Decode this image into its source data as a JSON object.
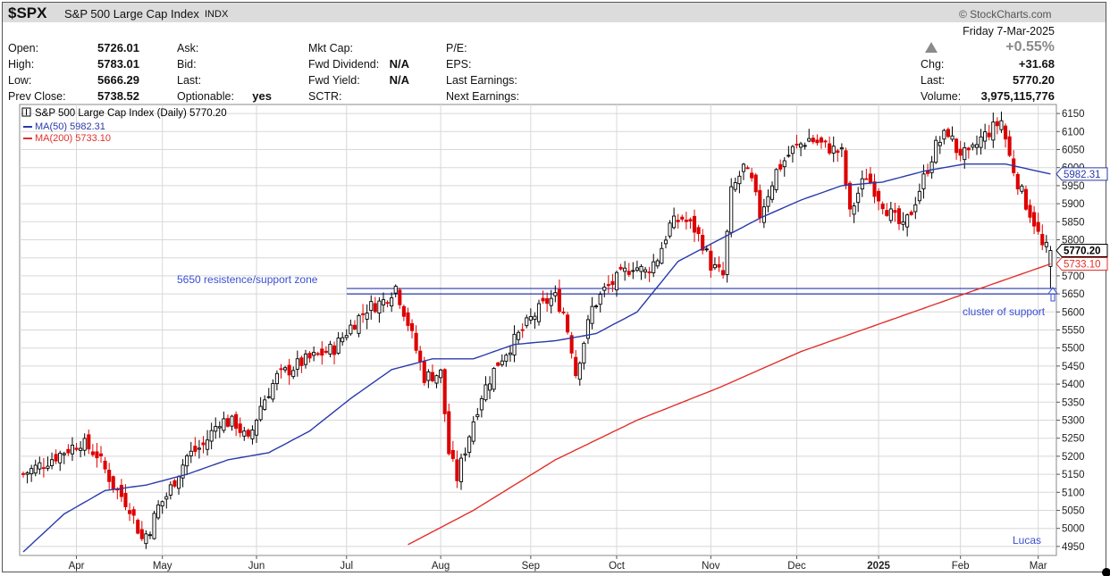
{
  "header": {
    "ticker": "$SPX",
    "index_name": "S&P 500 Large Cap Index",
    "exchange": "INDX",
    "watermark": "© StockCharts.com",
    "date": "Friday 7-Mar-2025",
    "pct_change": "+0.55%",
    "up_arrow_icon": "triangle-up-icon"
  },
  "quote": {
    "open_label": "Open:",
    "open": "5726.01",
    "high_label": "High:",
    "high": "5783.01",
    "low_label": "Low:",
    "low": "5666.29",
    "prev_close_label": "Prev Close:",
    "prev_close": "5738.52",
    "ask_label": "Ask:",
    "bid_label": "Bid:",
    "last_label_mid": "Last:",
    "optionable_label": "Optionable:",
    "optionable": "yes",
    "mkt_cap_label": "Mkt Cap:",
    "fwd_dividend_label": "Fwd Dividend:",
    "fwd_dividend": "N/A",
    "fwd_yield_label": "Fwd Yield:",
    "fwd_yield": "N/A",
    "sctr_label": "SCTR:",
    "pe_label": "P/E:",
    "eps_label": "EPS:",
    "last_earnings_label": "Last Earnings:",
    "next_earnings_label": "Next Earnings:",
    "chg_label": "Chg:",
    "chg": "+31.68",
    "last_label": "Last:",
    "last": "5770.20",
    "volume_label": "Volume:",
    "volume": "3,975,115,776"
  },
  "legend": {
    "price": "S&P 500 Large Cap Index (Daily) 5770.20",
    "ma50": "MA(50) 5982.31",
    "ma200": "MA(200) 5733.10"
  },
  "right_tags": {
    "ma50": "5982.31",
    "last": "5770.20",
    "ma200": "5733.10"
  },
  "annotations": {
    "zone": "5650 resistence/support zone",
    "cluster": "cluster of support",
    "author": "Lucas"
  },
  "colors": {
    "up": "#000000",
    "down": "#dd0000",
    "ma50": "#2a3aaa",
    "ma200": "#e0302a",
    "annotation": "#3a4fd0",
    "grid": "#d8d8d8"
  },
  "chart_data": {
    "type": "candlestick",
    "title": "S&P 500 Large Cap Index (Daily) 5770.20",
    "ylim": [
      4925,
      6175
    ],
    "y_ticks": [
      4950,
      5000,
      5050,
      5100,
      5150,
      5200,
      5250,
      5300,
      5350,
      5400,
      5450,
      5500,
      5550,
      5600,
      5650,
      5700,
      5750,
      5800,
      5850,
      5900,
      5950,
      6000,
      6050,
      6100,
      6150
    ],
    "x_ticks": [
      "Apr",
      "May",
      "Jun",
      "Jul",
      "Aug",
      "Sep",
      "Oct",
      "Nov",
      "Dec",
      "2025",
      "Feb",
      "Mar"
    ],
    "x_tick_days": [
      13,
      34,
      57,
      79,
      102,
      124,
      145,
      168,
      189,
      209,
      229,
      248
    ],
    "n_days": 252,
    "close_keypoints": [
      [
        0,
        5150
      ],
      [
        8,
        5200
      ],
      [
        14,
        5240
      ],
      [
        18,
        5205
      ],
      [
        22,
        5120
      ],
      [
        26,
        5060
      ],
      [
        29,
        4970
      ],
      [
        31,
        5000
      ],
      [
        33,
        5060
      ],
      [
        35,
        5090
      ],
      [
        40,
        5200
      ],
      [
        44,
        5230
      ],
      [
        48,
        5300
      ],
      [
        52,
        5290
      ],
      [
        55,
        5240
      ],
      [
        58,
        5340
      ],
      [
        62,
        5420
      ],
      [
        68,
        5460
      ],
      [
        72,
        5480
      ],
      [
        76,
        5500
      ],
      [
        80,
        5560
      ],
      [
        84,
        5610
      ],
      [
        88,
        5630
      ],
      [
        91,
        5670
      ],
      [
        94,
        5570
      ],
      [
        98,
        5420
      ],
      [
        102,
        5430
      ],
      [
        104,
        5210
      ],
      [
        106,
        5140
      ],
      [
        108,
        5220
      ],
      [
        110,
        5300
      ],
      [
        112,
        5370
      ],
      [
        116,
        5460
      ],
      [
        120,
        5520
      ],
      [
        124,
        5580
      ],
      [
        128,
        5630
      ],
      [
        130,
        5640
      ],
      [
        132,
        5600
      ],
      [
        134,
        5500
      ],
      [
        135,
        5430
      ],
      [
        137,
        5520
      ],
      [
        139,
        5610
      ],
      [
        142,
        5660
      ],
      [
        146,
        5700
      ],
      [
        149,
        5730
      ],
      [
        152,
        5710
      ],
      [
        155,
        5750
      ],
      [
        158,
        5840
      ],
      [
        161,
        5860
      ],
      [
        164,
        5830
      ],
      [
        166,
        5790
      ],
      [
        168,
        5730
      ],
      [
        171,
        5700
      ],
      [
        173,
        5930
      ],
      [
        176,
        6000
      ],
      [
        178,
        5960
      ],
      [
        180,
        5870
      ],
      [
        184,
        5990
      ],
      [
        188,
        6050
      ],
      [
        192,
        6080
      ],
      [
        196,
        6060
      ],
      [
        200,
        6040
      ],
      [
        202,
        5870
      ],
      [
        204,
        5930
      ],
      [
        206,
        5980
      ],
      [
        209,
        5920
      ],
      [
        212,
        5870
      ],
      [
        215,
        5830
      ],
      [
        217,
        5880
      ],
      [
        220,
        5970
      ],
      [
        223,
        6060
      ],
      [
        226,
        6100
      ],
      [
        228,
        6050
      ],
      [
        231,
        6030
      ],
      [
        234,
        6080
      ],
      [
        237,
        6110
      ],
      [
        239,
        6130
      ],
      [
        241,
        6030
      ],
      [
        243,
        5960
      ],
      [
        245,
        5900
      ],
      [
        247,
        5850
      ],
      [
        249,
        5780
      ],
      [
        251,
        5770
      ]
    ],
    "ma50_keypoints": [
      [
        0,
        4935
      ],
      [
        10,
        5040
      ],
      [
        20,
        5105
      ],
      [
        30,
        5120
      ],
      [
        40,
        5150
      ],
      [
        50,
        5190
      ],
      [
        60,
        5210
      ],
      [
        70,
        5270
      ],
      [
        80,
        5360
      ],
      [
        90,
        5440
      ],
      [
        100,
        5470
      ],
      [
        110,
        5470
      ],
      [
        120,
        5510
      ],
      [
        130,
        5520
      ],
      [
        140,
        5540
      ],
      [
        150,
        5600
      ],
      [
        160,
        5740
      ],
      [
        170,
        5800
      ],
      [
        180,
        5860
      ],
      [
        190,
        5910
      ],
      [
        200,
        5950
      ],
      [
        210,
        5960
      ],
      [
        220,
        5990
      ],
      [
        230,
        6010
      ],
      [
        240,
        6010
      ],
      [
        251,
        5982.31
      ]
    ],
    "ma200_keypoints": [
      [
        94,
        4955
      ],
      [
        110,
        5050
      ],
      [
        130,
        5190
      ],
      [
        150,
        5300
      ],
      [
        170,
        5390
      ],
      [
        190,
        5490
      ],
      [
        210,
        5570
      ],
      [
        230,
        5650
      ],
      [
        251,
        5733.1
      ]
    ],
    "zone_lines": [
      5650,
      5665
    ],
    "series": [
      {
        "name": "MA(50) 5982.31",
        "last": 5982.31
      },
      {
        "name": "MA(200) 5733.10",
        "last": 5733.1
      }
    ]
  }
}
